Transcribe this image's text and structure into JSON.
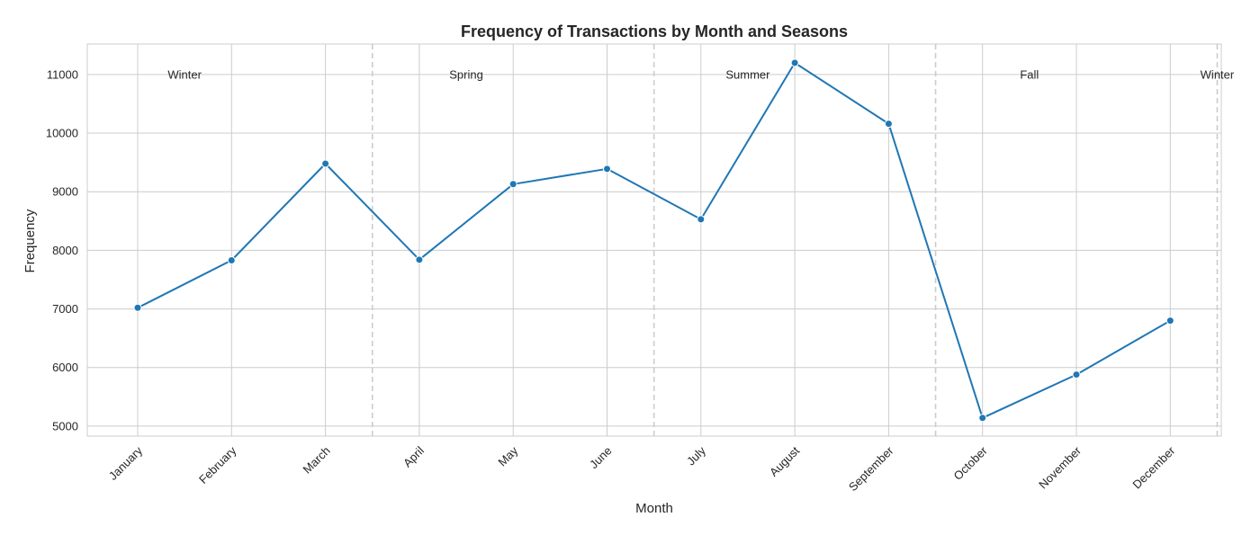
{
  "chart_data": {
    "type": "line",
    "title": "Frequency of Transactions by Month and Seasons",
    "xlabel": "Month",
    "ylabel": "Frequency",
    "categories": [
      "January",
      "February",
      "March",
      "April",
      "May",
      "June",
      "July",
      "August",
      "September",
      "October",
      "November",
      "December"
    ],
    "series": [
      {
        "values": [
          7020,
          7830,
          9480,
          7840,
          9130,
          9390,
          8530,
          11200,
          10160,
          5140,
          5880,
          6800
        ],
        "color": "#1f77b4",
        "marker": "circle"
      }
    ],
    "ylim": [
      4830,
      11520
    ],
    "yticks": [
      5000,
      6000,
      7000,
      8000,
      9000,
      10000,
      11000
    ],
    "grid": true,
    "season_labels": [
      {
        "label": "Winter",
        "x": 0.5
      },
      {
        "label": "Spring",
        "x": 3.5
      },
      {
        "label": "Summer",
        "x": 6.5
      },
      {
        "label": "Fall",
        "x": 9.5
      },
      {
        "label": "Winter",
        "x": 11.5
      }
    ],
    "season_boundaries": [
      2.5,
      5.5,
      8.5,
      11.5
    ],
    "colors": {
      "line": "#1f77b4",
      "grid": "#cccccc",
      "boundary": "#cccccc",
      "text": "#262626"
    }
  }
}
